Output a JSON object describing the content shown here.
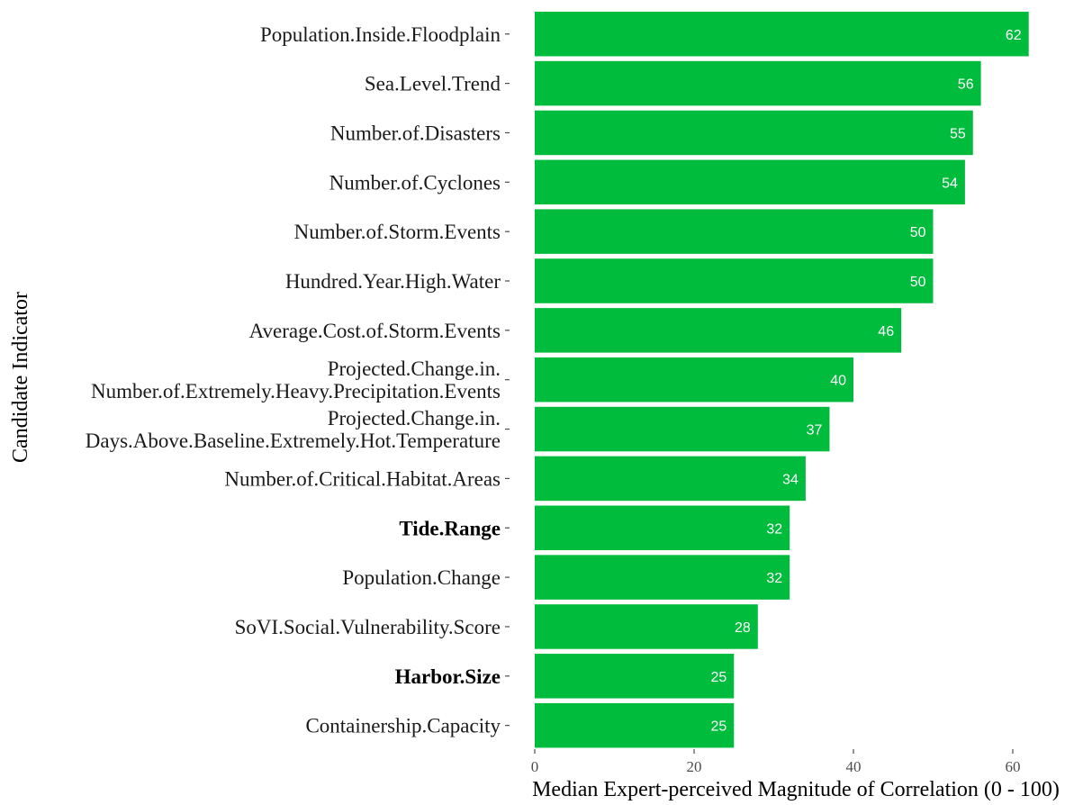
{
  "colors": {
    "bar": "#00BC3C",
    "value_label": "#ffffff",
    "tick": "#4d4d4d"
  },
  "chart_data": {
    "type": "bar",
    "orientation": "horizontal",
    "title": "",
    "xlabel": "Median Expert-perceived Magnitude of Correlation (0 - 100)",
    "ylabel": "Candidate Indicator",
    "xlim": [
      0,
      63
    ],
    "xticks": [
      0,
      20,
      40,
      60
    ],
    "grid": false,
    "legend": "none",
    "categories": [
      {
        "lines": [
          "Population.Inside.Floodplain"
        ],
        "value": 62,
        "bold": false
      },
      {
        "lines": [
          "Sea.Level.Trend"
        ],
        "value": 56,
        "bold": false
      },
      {
        "lines": [
          "Number.of.Disasters"
        ],
        "value": 55,
        "bold": false
      },
      {
        "lines": [
          "Number.of.Cyclones"
        ],
        "value": 54,
        "bold": false
      },
      {
        "lines": [
          "Number.of.Storm.Events"
        ],
        "value": 50,
        "bold": false
      },
      {
        "lines": [
          "Hundred.Year.High.Water"
        ],
        "value": 50,
        "bold": false
      },
      {
        "lines": [
          "Average.Cost.of.Storm.Events"
        ],
        "value": 46,
        "bold": false
      },
      {
        "lines": [
          "Projected.Change.in.",
          "Number.of.Extremely.Heavy.Precipitation.Events"
        ],
        "value": 40,
        "bold": false
      },
      {
        "lines": [
          "Projected.Change.in.",
          "Days.Above.Baseline.Extremely.Hot.Temperature"
        ],
        "value": 37,
        "bold": false
      },
      {
        "lines": [
          "Number.of.Critical.Habitat.Areas"
        ],
        "value": 34,
        "bold": false
      },
      {
        "lines": [
          "Tide.Range"
        ],
        "value": 32,
        "bold": true
      },
      {
        "lines": [
          "Population.Change"
        ],
        "value": 32,
        "bold": false
      },
      {
        "lines": [
          "SoVI.Social.Vulnerability.Score"
        ],
        "value": 28,
        "bold": false
      },
      {
        "lines": [
          "Harbor.Size"
        ],
        "value": 25,
        "bold": true
      },
      {
        "lines": [
          "Containership.Capacity"
        ],
        "value": 25,
        "bold": false
      }
    ]
  }
}
